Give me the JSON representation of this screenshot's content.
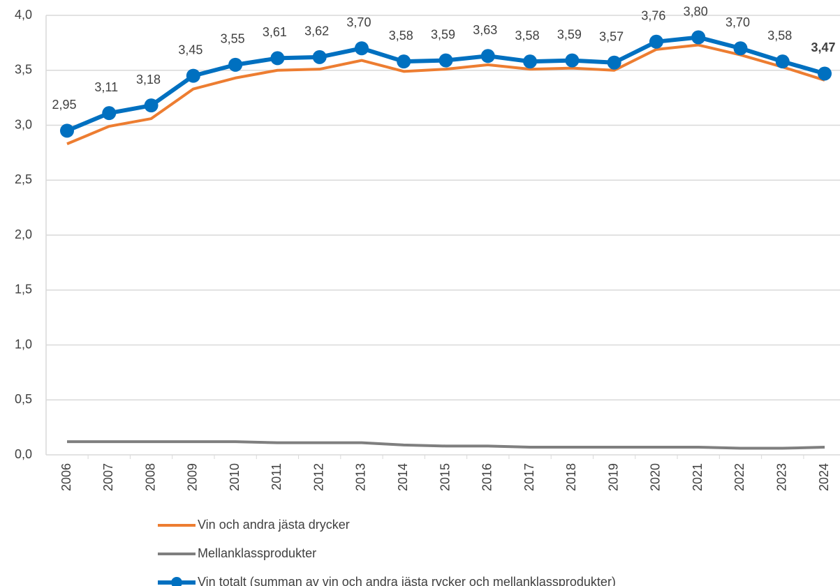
{
  "chart_data": {
    "type": "line",
    "categories": [
      "2006",
      "2007",
      "2008",
      "2009",
      "2010",
      "2011",
      "2012",
      "2013",
      "2014",
      "2015",
      "2016",
      "2017",
      "2018",
      "2019",
      "2020",
      "2021",
      "2022",
      "2023",
      "2024"
    ],
    "series": [
      {
        "name": "Vin och andra jästa drycker",
        "color": "#ed7d31",
        "values": [
          2.83,
          2.99,
          3.06,
          3.33,
          3.43,
          3.5,
          3.51,
          3.59,
          3.49,
          3.51,
          3.55,
          3.51,
          3.52,
          3.5,
          3.69,
          3.73,
          3.64,
          3.53,
          3.41
        ]
      },
      {
        "name": "Mellanklassprodukter",
        "color": "#7f7f7f",
        "values": [
          0.12,
          0.12,
          0.12,
          0.12,
          0.12,
          0.11,
          0.11,
          0.11,
          0.09,
          0.08,
          0.08,
          0.07,
          0.07,
          0.07,
          0.07,
          0.07,
          0.06,
          0.06,
          0.07
        ]
      },
      {
        "name": "Vin totalt (summan av vin och andra jästa rycker och mellanklassprodukter)",
        "color": "#0070c0",
        "markers": true,
        "values": [
          2.95,
          3.11,
          3.18,
          3.45,
          3.55,
          3.61,
          3.62,
          3.7,
          3.58,
          3.59,
          3.63,
          3.58,
          3.59,
          3.57,
          3.76,
          3.8,
          3.7,
          3.58,
          3.47
        ],
        "value_labels": [
          "2,95",
          "3,11",
          "3,18",
          "3,45",
          "3,55",
          "3,61",
          "3,62",
          "3,70",
          "3,58",
          "3,59",
          "3,63",
          "3,58",
          "3,59",
          "3,57",
          "3,76",
          "3,80",
          "3,70",
          "3,58",
          "3,47"
        ]
      }
    ],
    "ylim": [
      0,
      4
    ],
    "yticks": [
      {
        "value": 0,
        "label": "0,0"
      },
      {
        "value": 0.5,
        "label": "0,5"
      },
      {
        "value": 1,
        "label": "1,0"
      },
      {
        "value": 1.5,
        "label": "1,5"
      },
      {
        "value": 2,
        "label": "2,0"
      },
      {
        "value": 2.5,
        "label": "2,5"
      },
      {
        "value": 3,
        "label": "3,0"
      },
      {
        "value": 3.5,
        "label": "3,5"
      },
      {
        "value": 4,
        "label": "4,0"
      }
    ],
    "grid": true
  }
}
